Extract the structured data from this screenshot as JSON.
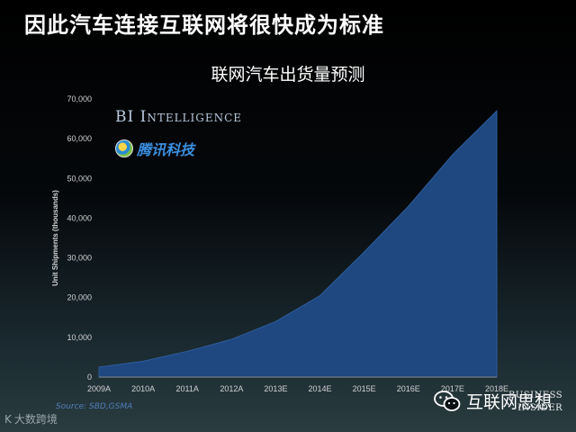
{
  "slide_title": "因此汽车连接互联网将很快成为标准",
  "bi_logo": "BI Intelligence",
  "tencent_logo": "腾讯科技",
  "source": "Source: SBD,GSMA",
  "bottom_logo": "大数跨境",
  "bottom_logo_mark": "K",
  "wechat_account": "互联网思想",
  "business_insider": [
    "BUSINESS",
    "INSIDER"
  ],
  "colors": {
    "area": "#1f4780",
    "area_edge": "#2f5e9c",
    "axis_text": "#d0d0d0"
  },
  "chart_data": {
    "type": "area",
    "title": "联网汽车出货量预测",
    "xlabel": "",
    "ylabel": "Unit Shipments (thousands)",
    "categories": [
      "2009A",
      "2010A",
      "2011A",
      "2012A",
      "2013E",
      "2014E",
      "2015E",
      "2016E",
      "2017E",
      "2018E"
    ],
    "values": [
      2500,
      4000,
      6500,
      9500,
      14000,
      20500,
      31500,
      43000,
      56000,
      67000
    ],
    "yticks": [
      "0",
      "10,000",
      "20,000",
      "30,000",
      "40,000",
      "50,000",
      "60,000",
      "70,000"
    ],
    "ylim": [
      0,
      70000
    ],
    "grid": false
  }
}
